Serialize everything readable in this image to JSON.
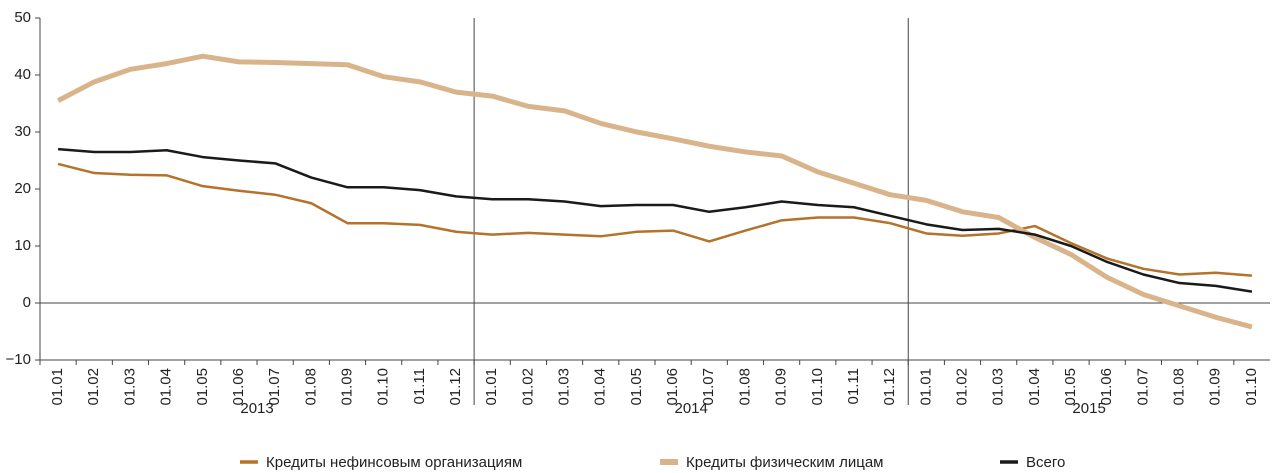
{
  "chart_data": {
    "type": "line",
    "categories": [
      "01.01",
      "01.02",
      "01.03",
      "01.04",
      "01.05",
      "01.06",
      "01.07",
      "01.08",
      "01.09",
      "01.10",
      "01.11",
      "01.12",
      "01.01",
      "01.02",
      "01.03",
      "01.04",
      "01.05",
      "01.06",
      "01.07",
      "01.08",
      "01.09",
      "01.10",
      "01.11",
      "01.12",
      "01.01",
      "01.02",
      "01.03",
      "01.04",
      "01.05",
      "01.06",
      "01.07",
      "01.08",
      "01.09",
      "01.10"
    ],
    "years": [
      "2013",
      "2014",
      "2015"
    ],
    "series": [
      {
        "name": "Кредиты нефинсовым организациям",
        "color": "#b5722a",
        "width": 2.5,
        "values": [
          24.4,
          22.8,
          22.5,
          22.4,
          20.5,
          19.7,
          19,
          17.5,
          14,
          14,
          13.7,
          12.5,
          12,
          12.3,
          12,
          11.7,
          12.5,
          12.7,
          10.8,
          12.7,
          14.5,
          15,
          15,
          14,
          12.2,
          11.8,
          12.2,
          13.5,
          10.5,
          7.8,
          6,
          5,
          5.3,
          4.8
        ]
      },
      {
        "name": "Кредиты физическим лицам",
        "color": "#d9b48a",
        "width": 5,
        "values": [
          35.5,
          38.8,
          41,
          42,
          43.3,
          42.3,
          42.2,
          42,
          41.8,
          39.7,
          38.8,
          37,
          36.3,
          34.5,
          33.7,
          31.5,
          30,
          28.8,
          27.5,
          26.5,
          25.8,
          23,
          21,
          19,
          18,
          16,
          15,
          11.5,
          8.5,
          4.5,
          1.5,
          -0.5,
          -2.5,
          -4.2
        ]
      },
      {
        "name": "Всего",
        "color": "#1a1a1a",
        "width": 2.5,
        "values": [
          27,
          26.5,
          26.5,
          26.8,
          25.6,
          25,
          24.5,
          22,
          20.3,
          20.3,
          19.8,
          18.7,
          18.2,
          18.2,
          17.8,
          17,
          17.2,
          17.2,
          16,
          16.8,
          17.8,
          17.2,
          16.8,
          15.3,
          13.8,
          12.8,
          13,
          12,
          10,
          7.2,
          5,
          3.5,
          3,
          2
        ]
      }
    ],
    "ylim": [
      -10,
      50
    ],
    "yticks": [
      {
        "value": -10,
        "label": "−10"
      },
      0,
      10,
      20,
      30,
      40,
      50
    ]
  }
}
